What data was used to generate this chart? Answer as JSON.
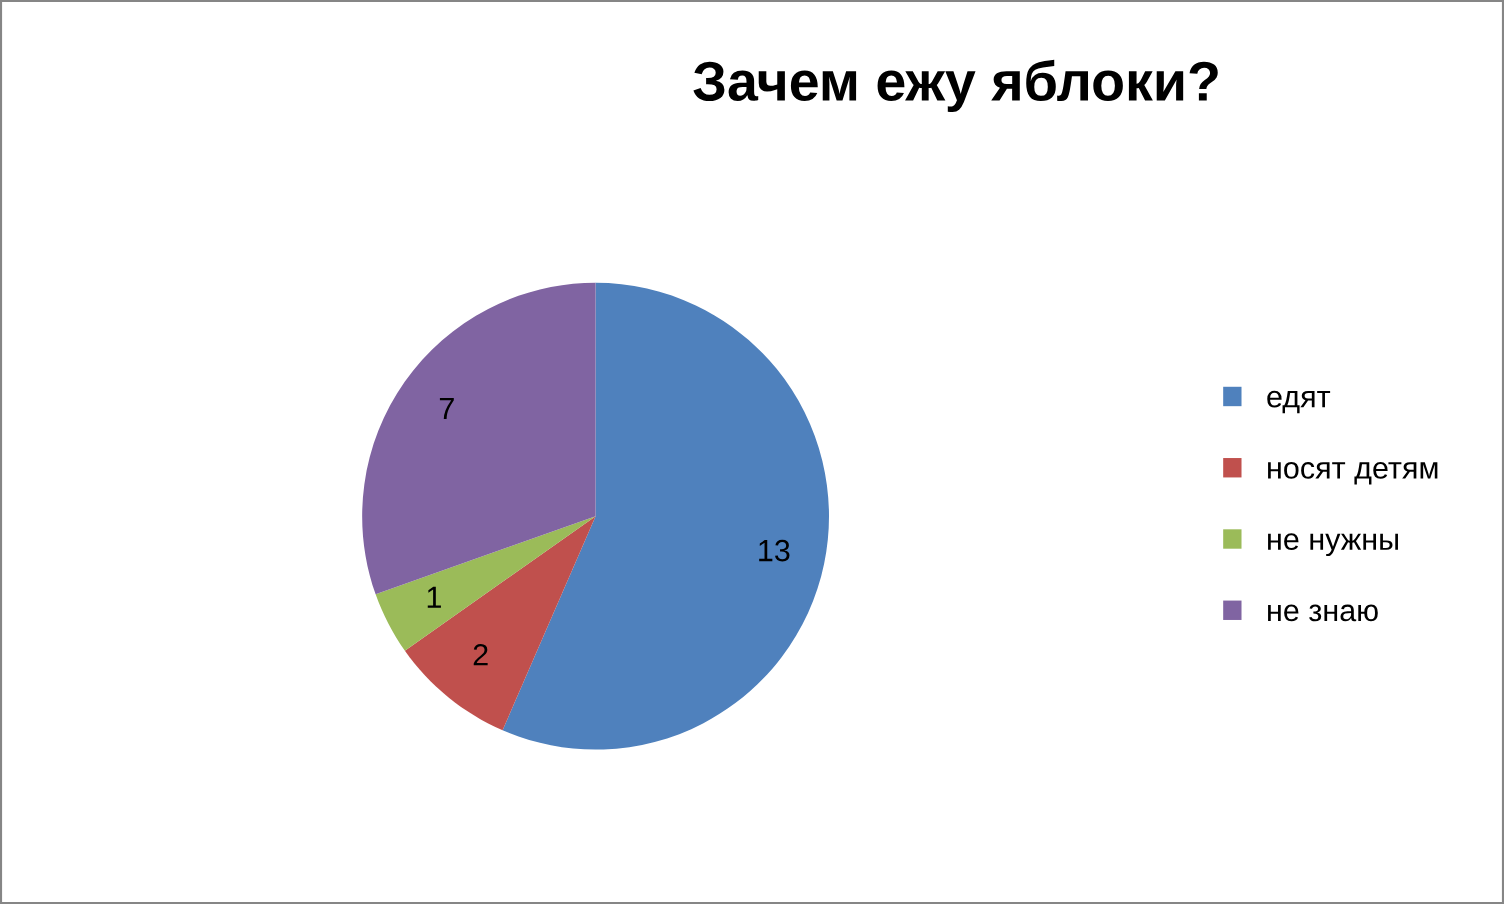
{
  "chart_data": {
    "type": "pie",
    "title": "Зачем ежу яблоки?",
    "categories": [
      "едят",
      "носят детям",
      "не нужны",
      "не знаю"
    ],
    "values": [
      13,
      2,
      1,
      7
    ],
    "colors": [
      "#4f81bd",
      "#c0504d",
      "#9bbb59",
      "#8064a2"
    ],
    "data_labels": true,
    "legend": "right"
  }
}
